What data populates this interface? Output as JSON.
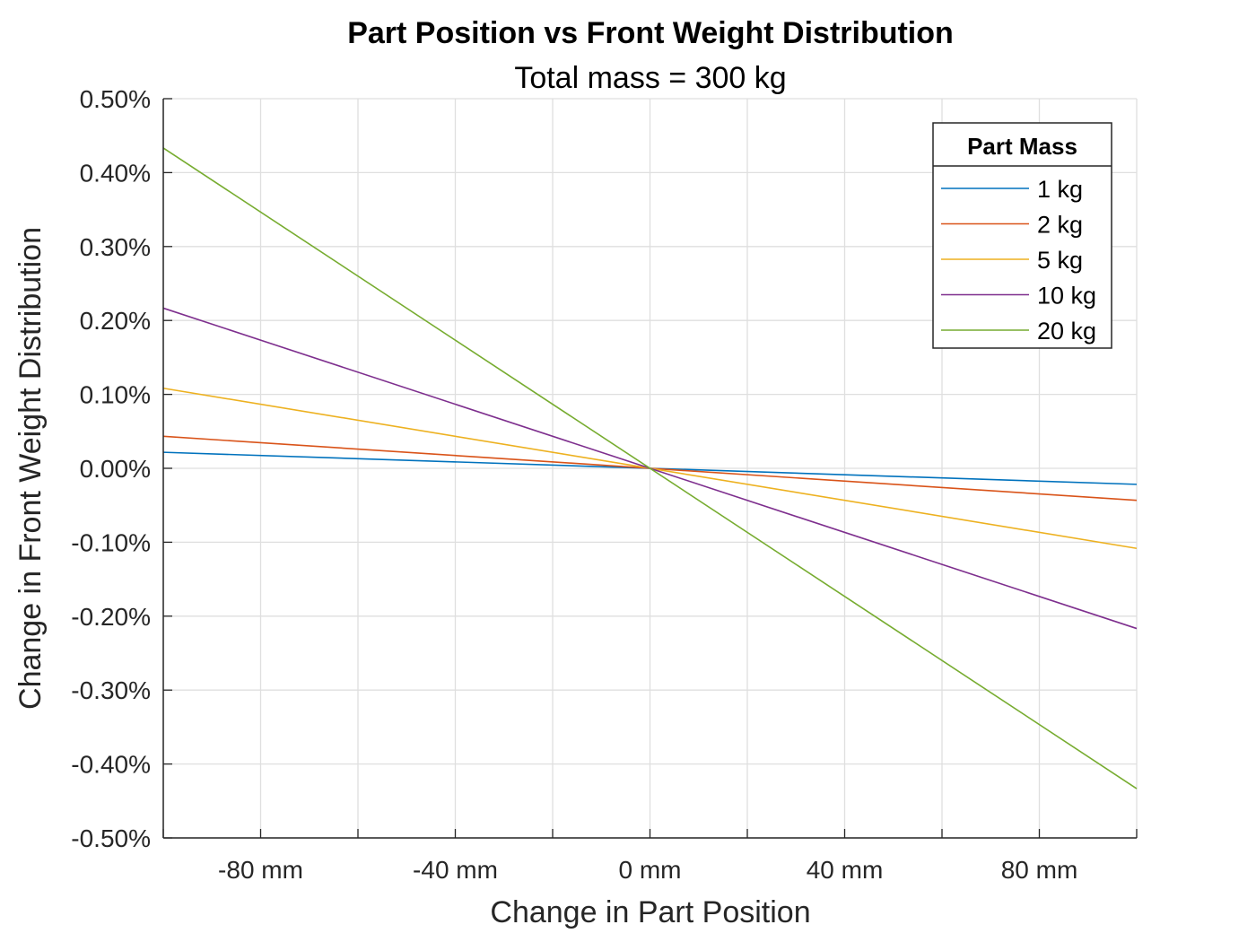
{
  "chart_data": {
    "type": "line",
    "title": "Part Position vs Front Weight Distribution",
    "subtitle": "Total mass = 300 kg",
    "xlabel": "Change in Part Position",
    "ylabel": "Change in Front Weight Distribution",
    "xlim": [
      -100,
      100
    ],
    "ylim": [
      -0.5,
      0.5
    ],
    "x_unit": "mm",
    "y_unit": "%",
    "x_ticks": [
      -80,
      -40,
      0,
      40,
      80
    ],
    "x_tick_labels": [
      "-80 mm",
      "-40 mm",
      "0 mm",
      "40 mm",
      "80 mm"
    ],
    "x_grid": [
      -100,
      -80,
      -60,
      -40,
      -20,
      0,
      20,
      40,
      60,
      80,
      100
    ],
    "y_ticks": [
      0.5,
      0.4,
      0.3,
      0.2,
      0.1,
      0.0,
      -0.1,
      -0.2,
      -0.3,
      -0.4,
      -0.5
    ],
    "y_tick_labels": [
      "0.50%",
      "0.40%",
      "0.30%",
      "0.20%",
      "0.10%",
      "0.00%",
      "-0.10%",
      "-0.20%",
      "-0.30%",
      "-0.40%",
      "-0.50%"
    ],
    "grid": true,
    "legend": {
      "title": "Part Mass",
      "position": "top-right"
    },
    "x": [
      -100,
      100
    ],
    "series": [
      {
        "name": "1 kg",
        "color": "#0072BD",
        "values": [
          0.0217,
          -0.0217
        ]
      },
      {
        "name": "2 kg",
        "color": "#D95319",
        "values": [
          0.0433,
          -0.0433
        ]
      },
      {
        "name": "5 kg",
        "color": "#EDB120",
        "values": [
          0.1083,
          -0.1083
        ]
      },
      {
        "name": "10 kg",
        "color": "#7E2F8E",
        "values": [
          0.2167,
          -0.2167
        ]
      },
      {
        "name": "20 kg",
        "color": "#77AC30",
        "values": [
          0.4333,
          -0.4333
        ]
      }
    ]
  }
}
